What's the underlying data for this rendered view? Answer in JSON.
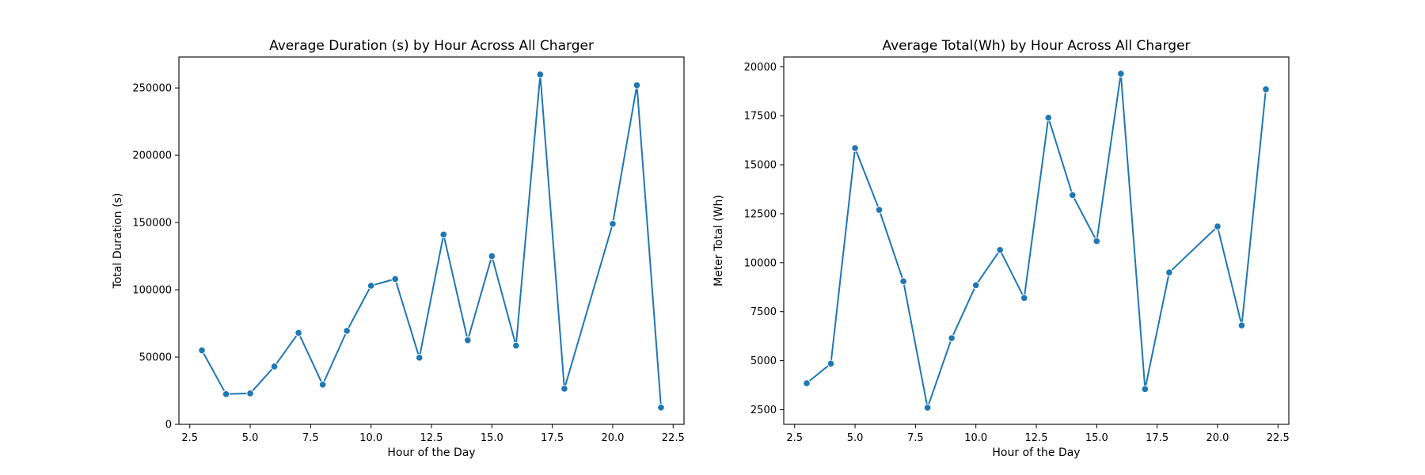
{
  "colors": {
    "series": "#1f77b4",
    "axes": "#000000",
    "background": "#ffffff"
  },
  "chart_data": [
    {
      "type": "line",
      "title": "Average Duration (s) by Hour Across All Charger",
      "xlabel": "Hour of the Day",
      "ylabel": "Total Duration (s)",
      "xlim": [
        2.05,
        22.95
      ],
      "ylim": [
        0,
        273000
      ],
      "xticks": [
        2.5,
        5.0,
        7.5,
        10.0,
        12.5,
        15.0,
        17.5,
        20.0,
        22.5
      ],
      "xtick_labels": [
        "2.5",
        "5.0",
        "7.5",
        "10.0",
        "12.5",
        "15.0",
        "17.5",
        "20.0",
        "22.5"
      ],
      "yticks": [
        0,
        50000,
        100000,
        150000,
        200000,
        250000
      ],
      "ytick_labels": [
        "0",
        "50000",
        "100000",
        "150000",
        "200000",
        "250000"
      ],
      "grid": false,
      "marker": "circle",
      "x": [
        3,
        4,
        5,
        6,
        7,
        8,
        9,
        10,
        11,
        12,
        13,
        14,
        15,
        16,
        17,
        18,
        20,
        21,
        22
      ],
      "y": [
        55000,
        22500,
        23000,
        43000,
        68000,
        29500,
        69500,
        103000,
        108000,
        49500,
        141000,
        62500,
        125000,
        58500,
        260000,
        26500,
        149000,
        252000,
        12500
      ]
    },
    {
      "type": "line",
      "title": "Average Total(Wh) by Hour Across All Charger",
      "xlabel": "Hour of the Day",
      "ylabel": "Meter Total (Wh)",
      "xlim": [
        2.05,
        22.95
      ],
      "ylim": [
        1750,
        20500
      ],
      "xticks": [
        2.5,
        5.0,
        7.5,
        10.0,
        12.5,
        15.0,
        17.5,
        20.0,
        22.5
      ],
      "xtick_labels": [
        "2.5",
        "5.0",
        "7.5",
        "10.0",
        "12.5",
        "15.0",
        "17.5",
        "20.0",
        "22.5"
      ],
      "yticks": [
        2500,
        5000,
        7500,
        10000,
        12500,
        15000,
        17500,
        20000
      ],
      "ytick_labels": [
        "2500",
        "5000",
        "7500",
        "10000",
        "12500",
        "15000",
        "17500",
        "20000"
      ],
      "grid": false,
      "marker": "circle",
      "x": [
        3,
        4,
        5,
        6,
        7,
        8,
        9,
        10,
        11,
        12,
        13,
        14,
        15,
        16,
        17,
        18,
        20,
        21,
        22
      ],
      "y": [
        3850,
        4850,
        15850,
        12700,
        9050,
        2600,
        6150,
        8850,
        10650,
        8200,
        17400,
        13450,
        11100,
        19650,
        3550,
        9500,
        11850,
        6800,
        18850
      ]
    }
  ]
}
